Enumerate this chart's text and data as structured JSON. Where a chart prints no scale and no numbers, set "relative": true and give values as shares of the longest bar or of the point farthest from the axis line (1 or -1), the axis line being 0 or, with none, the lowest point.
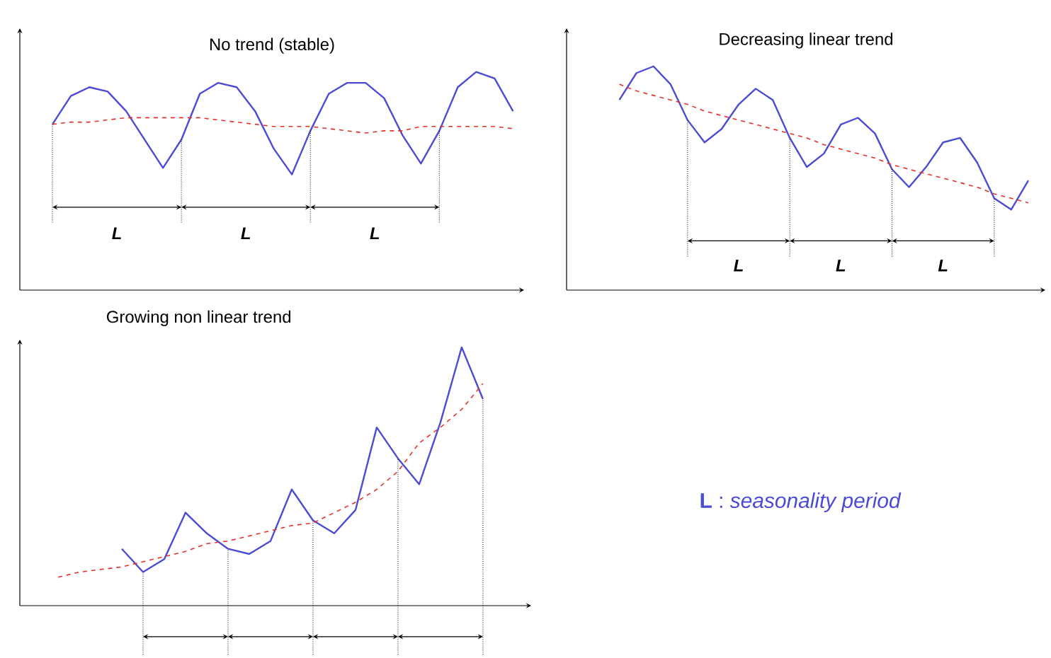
{
  "chart_data": [
    {
      "type": "line",
      "title": "No trend (stable)",
      "relative": true,
      "categories": [
        null,
        null,
        null,
        null,
        null,
        null,
        null,
        null,
        null,
        null,
        null,
        null,
        null,
        null,
        null,
        null,
        null,
        null,
        null,
        null,
        null,
        null,
        null,
        null,
        null,
        null
      ],
      "series": [
        {
          "color": "#4b4bd6",
          "line_style": "solid",
          "values": [
            0.76,
            0.89,
            0.93,
            0.91,
            0.82,
            0.69,
            0.56,
            0.69,
            0.9,
            0.95,
            0.93,
            0.82,
            0.65,
            0.53,
            0.73,
            0.9,
            0.95,
            0.95,
            0.88,
            0.71,
            0.58,
            0.73,
            0.93,
            1.0,
            0.97,
            0.82
          ]
        },
        {
          "color": "#e8302a",
          "line_style": "dashed",
          "values": [
            0.76,
            0.77,
            0.77,
            0.78,
            0.79,
            0.79,
            0.79,
            0.79,
            0.79,
            0.78,
            0.77,
            0.76,
            0.75,
            0.75,
            0.75,
            0.74,
            0.73,
            0.72,
            0.73,
            0.73,
            0.75,
            0.75,
            0.75,
            0.75,
            0.75,
            0.74
          ]
        }
      ],
      "annotations": [
        "L",
        "L",
        "L"
      ]
    },
    {
      "type": "line",
      "title": "Decreasing linear trend",
      "relative": true,
      "categories": [
        null,
        null,
        null,
        null,
        null,
        null,
        null,
        null,
        null,
        null,
        null,
        null,
        null,
        null,
        null,
        null,
        null,
        null,
        null,
        null,
        null,
        null,
        null,
        null,
        null
      ],
      "series": [
        {
          "color": "#4b4bd6",
          "line_style": "solid",
          "values": [
            0.85,
            0.97,
            1.0,
            0.92,
            0.76,
            0.66,
            0.72,
            0.83,
            0.9,
            0.85,
            0.68,
            0.55,
            0.61,
            0.74,
            0.77,
            0.7,
            0.54,
            0.46,
            0.55,
            0.66,
            0.68,
            0.57,
            0.41,
            0.36,
            0.49
          ]
        },
        {
          "color": "#e8302a",
          "line_style": "dashed",
          "values": [
            0.92,
            0.89,
            0.87,
            0.85,
            0.83,
            0.8,
            0.78,
            0.76,
            0.74,
            0.72,
            0.7,
            0.68,
            0.65,
            0.63,
            0.61,
            0.59,
            0.56,
            0.54,
            0.52,
            0.5,
            0.48,
            0.46,
            0.43,
            0.41,
            0.39
          ]
        }
      ],
      "annotations": [
        "L",
        "L",
        "L"
      ]
    },
    {
      "type": "line",
      "title": "Growing non linear trend",
      "relative": true,
      "categories": [
        null,
        null,
        null,
        null,
        null,
        null,
        null,
        null,
        null,
        null,
        null,
        null,
        null,
        null,
        null,
        null,
        null,
        null,
        null,
        null,
        null
      ],
      "series": [
        {
          "color": "#4b4bd6",
          "line_style": "solid",
          "values": [
            null,
            null,
            null,
            0.22,
            0.13,
            0.18,
            0.36,
            0.28,
            0.22,
            0.2,
            0.25,
            0.45,
            0.33,
            0.28,
            0.37,
            0.69,
            0.57,
            0.47,
            0.71,
            1.0,
            0.8
          ]
        },
        {
          "color": "#e8302a",
          "line_style": "dashed",
          "values": [
            0.11,
            0.13,
            0.14,
            0.15,
            0.17,
            0.19,
            0.21,
            0.24,
            0.25,
            0.27,
            0.29,
            0.31,
            0.32,
            0.36,
            0.4,
            0.45,
            0.52,
            0.63,
            0.69,
            0.76,
            0.86
          ]
        }
      ]
    },
    {
      "type": "other",
      "annotations": [
        "**L** : *seasonality period*"
      ]
    }
  ]
}
